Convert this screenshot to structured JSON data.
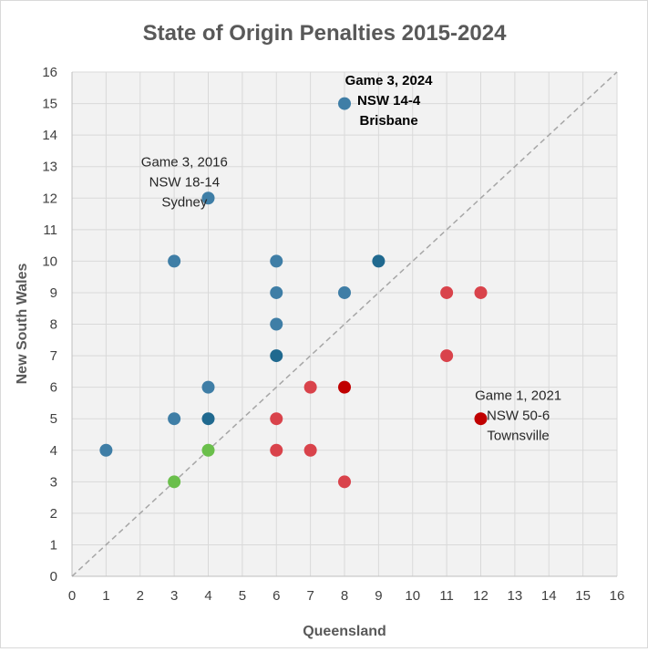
{
  "chart_data": {
    "type": "scatter",
    "title": "State of Origin Penalties 2015-2024",
    "xlabel": "Queensland",
    "ylabel": "New South Wales",
    "xlim": [
      0,
      16
    ],
    "ylim": [
      0,
      16
    ],
    "grid": true,
    "legend": "none",
    "diagonal_reference": true,
    "x_ticks": [
      "0",
      "1",
      "2",
      "3",
      "4",
      "5",
      "6",
      "7",
      "8",
      "9",
      "10",
      "11",
      "12",
      "13",
      "14",
      "15",
      "16"
    ],
    "y_ticks": [
      "0",
      "1",
      "2",
      "3",
      "4",
      "5",
      "6",
      "7",
      "8",
      "9",
      "10",
      "11",
      "12",
      "13",
      "14",
      "15",
      "16"
    ],
    "colors": {
      "nsw_more": "#3f7ea6",
      "nsw_more_overlap": "#20698f",
      "qld_more": "#d9434b",
      "qld_more_overlap": "#c00000",
      "equal": "#6abf4b",
      "plot_background": "#f2f2f2",
      "gridline": "#d9d9d9",
      "diagonal": "#a6a6a6"
    },
    "points": [
      {
        "x": 1,
        "y": 4,
        "color": "#3f7ea6"
      },
      {
        "x": 3,
        "y": 5,
        "color": "#3f7ea6"
      },
      {
        "x": 3,
        "y": 10,
        "color": "#3f7ea6"
      },
      {
        "x": 4,
        "y": 5,
        "color": "#20698f"
      },
      {
        "x": 4,
        "y": 6,
        "color": "#3f7ea6"
      },
      {
        "x": 4,
        "y": 12,
        "color": "#3f7ea6"
      },
      {
        "x": 6,
        "y": 7,
        "color": "#20698f"
      },
      {
        "x": 6,
        "y": 8,
        "color": "#3f7ea6"
      },
      {
        "x": 6,
        "y": 9,
        "color": "#3f7ea6"
      },
      {
        "x": 6,
        "y": 10,
        "color": "#3f7ea6"
      },
      {
        "x": 8,
        "y": 9,
        "color": "#3f7ea6"
      },
      {
        "x": 8,
        "y": 15,
        "color": "#3f7ea6"
      },
      {
        "x": 9,
        "y": 10,
        "color": "#20698f"
      },
      {
        "x": 3,
        "y": 3,
        "color": "#6abf4b"
      },
      {
        "x": 4,
        "y": 4,
        "color": "#6abf4b"
      },
      {
        "x": 6,
        "y": 4,
        "color": "#d9434b"
      },
      {
        "x": 6,
        "y": 5,
        "color": "#d9434b"
      },
      {
        "x": 7,
        "y": 4,
        "color": "#d9434b"
      },
      {
        "x": 7,
        "y": 6,
        "color": "#d9434b"
      },
      {
        "x": 8,
        "y": 3,
        "color": "#d9434b"
      },
      {
        "x": 8,
        "y": 6,
        "color": "#c00000"
      },
      {
        "x": 11,
        "y": 7,
        "color": "#d9434b"
      },
      {
        "x": 11,
        "y": 9,
        "color": "#d9434b"
      },
      {
        "x": 12,
        "y": 9,
        "color": "#d9434b"
      },
      {
        "x": 12,
        "y": 5,
        "color": "#c00000"
      }
    ],
    "annotations": [
      {
        "x": 3.3,
        "y": 13,
        "lines": [
          "Game 3, 2016",
          "NSW 18-14",
          "Sydney"
        ],
        "bold": false
      },
      {
        "x": 9.3,
        "y": 15.6,
        "lines": [
          "Game 3, 2024",
          "NSW 14-4",
          "Brisbane"
        ],
        "bold": true
      },
      {
        "x": 13.1,
        "y": 5.6,
        "lines": [
          "Game 1, 2021",
          "NSW 50-6",
          "Townsville"
        ],
        "bold": false
      }
    ]
  }
}
